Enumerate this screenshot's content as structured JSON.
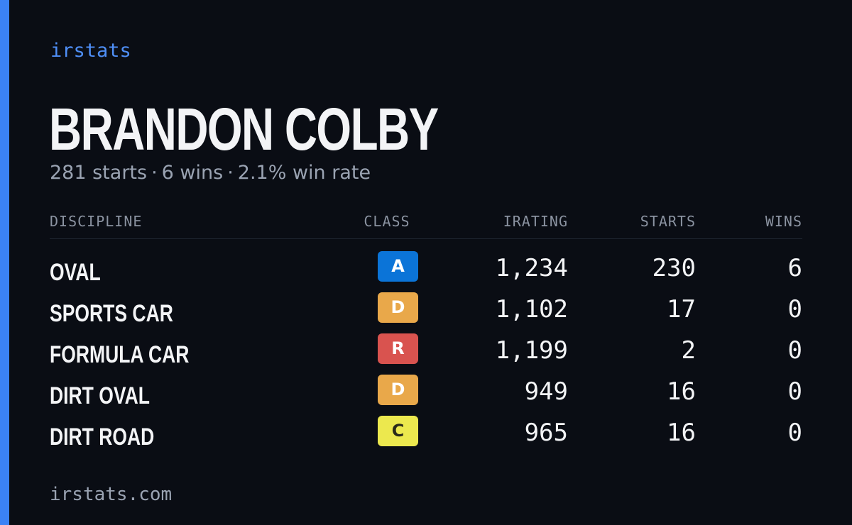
{
  "brand": "irstats",
  "player": {
    "name": "BRANDON COLBY",
    "starts_text": "281 starts",
    "wins_text": "6 wins",
    "win_rate_text": "2.1% win rate",
    "separator": "·"
  },
  "table": {
    "headers": {
      "discipline": "DISCIPLINE",
      "class": "CLASS",
      "irating": "IRATING",
      "starts": "STARTS",
      "wins": "WINS"
    },
    "rows": [
      {
        "discipline": "OVAL",
        "class": "A",
        "class_color": "#0b74d8",
        "class_text_color": "#ffffff",
        "irating": "1,234",
        "starts": "230",
        "wins": "6"
      },
      {
        "discipline": "SPORTS CAR",
        "class": "D",
        "class_color": "#e9a84a",
        "class_text_color": "#ffffff",
        "irating": "1,102",
        "starts": "17",
        "wins": "0"
      },
      {
        "discipline": "FORMULA CAR",
        "class": "R",
        "class_color": "#d9534f",
        "class_text_color": "#ffffff",
        "irating": "1,199",
        "starts": "2",
        "wins": "0"
      },
      {
        "discipline": "DIRT OVAL",
        "class": "D",
        "class_color": "#e9a84a",
        "class_text_color": "#ffffff",
        "irating": "949",
        "starts": "16",
        "wins": "0"
      },
      {
        "discipline": "DIRT ROAD",
        "class": "C",
        "class_color": "#ece84e",
        "class_text_color": "#2a2a1a",
        "irating": "965",
        "starts": "16",
        "wins": "0"
      }
    ]
  },
  "footer": "irstats.com",
  "colors": {
    "background": "#0a0d14",
    "accent": "#3b82f6"
  }
}
